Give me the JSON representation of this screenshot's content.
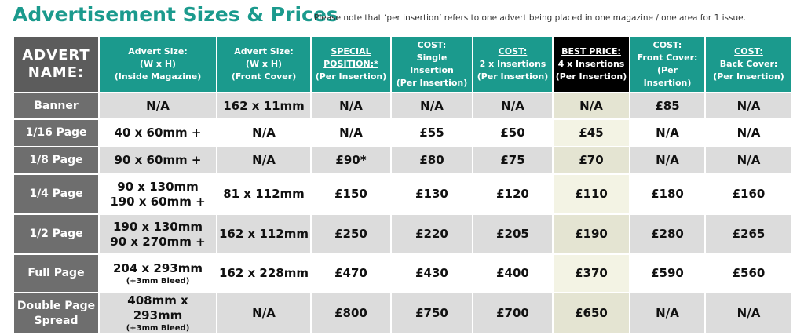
{
  "header": {
    "title": "Advertisement Sizes & Prices",
    "note": "Please note that ‘per insertion’ refers to one advert being placed in one magazine / one area for 1 issue."
  },
  "table": {
    "headers": [
      [
        "ADVERT NAME:"
      ],
      [
        "Advert Size:",
        "(W x H)",
        "(Inside Magazine)"
      ],
      [
        "Advert Size:",
        "(W x H)",
        "(Front Cover)"
      ],
      [
        "SPECIAL POSITION:*",
        "(Per Insertion)"
      ],
      [
        "COST:",
        "Single Insertion",
        "(Per Insertion)"
      ],
      [
        "COST:",
        "2 x Insertions",
        "(Per Insertion)"
      ],
      [
        "BEST PRICE:",
        "4 x Insertions",
        "(Per Insertion)"
      ],
      [
        "COST:",
        "Front Cover:",
        "(Per Insertion)"
      ],
      [
        "COST:",
        "Back Cover:",
        "(Per Insertion)"
      ]
    ],
    "rows": [
      {
        "name": "Banner",
        "cells": [
          "N/A",
          "162 x 11mm",
          "N/A",
          "N/A",
          "N/A",
          "N/A",
          "£85",
          "N/A"
        ]
      },
      {
        "name": "1/16 Page",
        "cells": [
          "40 x 60mm +",
          "N/A",
          "N/A",
          "£55",
          "£50",
          "£45",
          "N/A",
          "N/A"
        ]
      },
      {
        "name": "1/8 Page",
        "cells": [
          "90 x 60mm +",
          "N/A",
          "£90*",
          "£80",
          "£75",
          "£70",
          "N/A",
          "N/A"
        ]
      },
      {
        "name": "1/4 Page",
        "cells": [
          [
            "90 x 130mm",
            "190 x 60mm +"
          ],
          "81 x 112mm",
          "£150",
          "£130",
          "£120",
          "£110",
          "£180",
          "£160"
        ]
      },
      {
        "name": "1/2 Page",
        "cells": [
          [
            "190 x 130mm",
            "90 x 270mm +"
          ],
          "162 x 112mm",
          "£250",
          "£220",
          "£205",
          "£190",
          "£280",
          "£265"
        ]
      },
      {
        "name": "Full Page",
        "cells": [
          [
            "204 x 293mm",
            "(+3mm Bleed)"
          ],
          "162 x 228mm",
          "£470",
          "£430",
          "£400",
          "£370",
          "£590",
          "£560"
        ]
      },
      {
        "name": "Double Page Spread",
        "cells": [
          [
            "408mm x 293mm",
            "(+3mm Bleed)"
          ],
          "N/A",
          "£800",
          "£750",
          "£700",
          "£650",
          "N/A",
          "N/A"
        ]
      }
    ]
  }
}
